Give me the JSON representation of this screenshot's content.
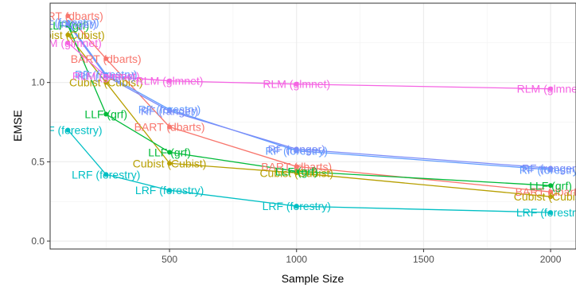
{
  "chart_data": {
    "type": "line",
    "title": "",
    "xlabel": "Sample Size",
    "ylabel": "EMSE",
    "xlim": [
      30,
      2100
    ],
    "ylim": [
      -0.05,
      1.5
    ],
    "xticks": [
      500,
      1000,
      1500,
      2000
    ],
    "yticks": [
      0.0,
      0.5,
      1.0
    ],
    "ytick_labels": [
      "0.0",
      "0.5",
      "1.0"
    ],
    "grid": true,
    "legend": "none",
    "series": [
      {
        "name": "BART (dbarts)",
        "color": "#F8766D",
        "points": [
          {
            "x": 100,
            "y": 1.42,
            "label": "BART (dbarts)"
          },
          {
            "x": 250,
            "y": 1.15,
            "label": "BART (dbarts)"
          },
          {
            "x": 500,
            "y": 0.72,
            "label": "BART (dbarts)"
          },
          {
            "x": 1000,
            "y": 0.47,
            "label": "BART (dbarts)"
          },
          {
            "x": 2000,
            "y": 0.31,
            "label": "BART (dbarts)"
          }
        ]
      },
      {
        "name": "Cubist (Cubist)",
        "color": "#B79F00",
        "points": [
          {
            "x": 100,
            "y": 1.3,
            "label": "Cubist (Cubist)"
          },
          {
            "x": 250,
            "y": 1.0,
            "label": "Cubist (Cubist)"
          },
          {
            "x": 500,
            "y": 0.49,
            "label": "Cubist (Cubist)"
          },
          {
            "x": 1000,
            "y": 0.43,
            "label": "Cubist (Cubist)"
          },
          {
            "x": 2000,
            "y": 0.28,
            "label": "Cubist (Cubist)"
          }
        ]
      },
      {
        "name": "LLF (grf)",
        "color": "#00BA38",
        "points": [
          {
            "x": 100,
            "y": 1.36,
            "label": "LLF (grf)"
          },
          {
            "x": 250,
            "y": 0.8,
            "label": "LLF (grf)"
          },
          {
            "x": 500,
            "y": 0.56,
            "label": "LLF (grf)"
          },
          {
            "x": 1000,
            "y": 0.44,
            "label": "LLF (grf)"
          },
          {
            "x": 2000,
            "y": 0.35,
            "label": "LLF (grf)"
          }
        ]
      },
      {
        "name": "LRF (forestry)",
        "color": "#00BFC4",
        "points": [
          {
            "x": 100,
            "y": 0.7,
            "label": "LRF (forestry)"
          },
          {
            "x": 250,
            "y": 0.42,
            "label": "LRF (forestry)"
          },
          {
            "x": 500,
            "y": 0.32,
            "label": "LRF (forestry)"
          },
          {
            "x": 1000,
            "y": 0.22,
            "label": "LRF (forestry)"
          },
          {
            "x": 2000,
            "y": 0.18,
            "label": "LRF (forestry)"
          }
        ]
      },
      {
        "name": "RF (forestry)",
        "color": "#619CFF",
        "points": [
          {
            "x": 100,
            "y": 1.38,
            "label": "RF (forestry)"
          },
          {
            "x": 250,
            "y": 1.05,
            "label": "RF (forestry)"
          },
          {
            "x": 500,
            "y": 0.83,
            "label": "RF (forestry)"
          },
          {
            "x": 1000,
            "y": 0.57,
            "label": "RF (forestry)"
          },
          {
            "x": 2000,
            "y": 0.45,
            "label": "RF (forestry)"
          }
        ]
      },
      {
        "name": "RF (ranger)",
        "color": "#7C8CF8",
        "points": [
          {
            "x": 100,
            "y": 1.37,
            "label": "RF (ranger)"
          },
          {
            "x": 250,
            "y": 1.04,
            "label": "RF (ranger)"
          },
          {
            "x": 500,
            "y": 0.82,
            "label": "RF (ranger)"
          },
          {
            "x": 1000,
            "y": 0.58,
            "label": "RF (ranger)"
          },
          {
            "x": 2000,
            "y": 0.46,
            "label": "RF (ranger)"
          }
        ]
      },
      {
        "name": "RLM (glmnet)",
        "color": "#F564E3",
        "points": [
          {
            "x": 100,
            "y": 1.25,
            "label": "RLM (glmnet)"
          },
          {
            "x": 250,
            "y": 1.04,
            "label": "RLM (glmnet)"
          },
          {
            "x": 500,
            "y": 1.01,
            "label": "RLM (glmnet)"
          },
          {
            "x": 1000,
            "y": 0.99,
            "label": "RLM (glmnet)"
          },
          {
            "x": 2000,
            "y": 0.96,
            "label": "RLM (glmnet)"
          }
        ]
      }
    ]
  }
}
